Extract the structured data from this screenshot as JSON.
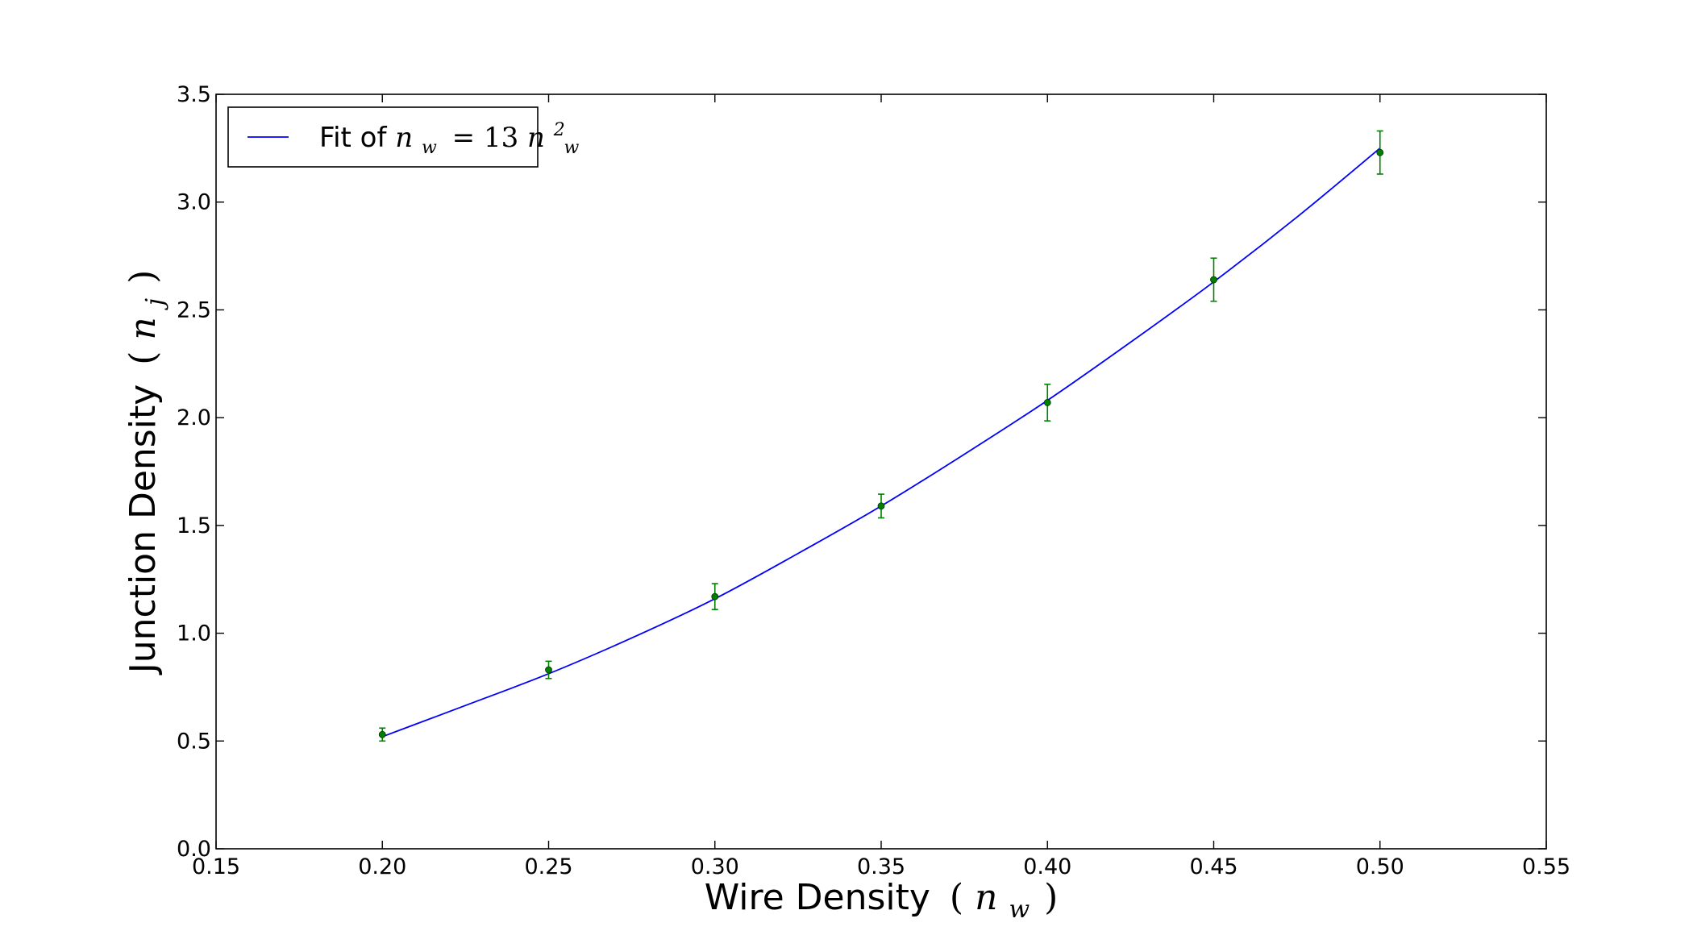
{
  "chart_data": {
    "type": "scatter",
    "title": "",
    "xlabel": {
      "text": "Wire Density",
      "math_base": "n",
      "math_sub": "w"
    },
    "ylabel": {
      "text": "Junction Density",
      "math_base": "n",
      "math_sub": "j"
    },
    "xlim": [
      0.15,
      0.55
    ],
    "ylim": [
      0.0,
      3.5
    ],
    "xticks": [
      "0.15",
      "0.20",
      "0.25",
      "0.30",
      "0.35",
      "0.40",
      "0.45",
      "0.50",
      "0.55"
    ],
    "yticks": [
      "0.0",
      "0.5",
      "1.0",
      "1.5",
      "2.0",
      "2.5",
      "3.0",
      "3.5"
    ],
    "grid": false,
    "legend_position": "top-left",
    "series": [
      {
        "name": "Fit of n_w = 13n_w^2",
        "kind": "line",
        "color": "#0000ff",
        "legend": {
          "prefix": "Fit of ",
          "lhs_base": "n",
          "lhs_sub": "w",
          "eq": "=",
          "coef": "13",
          "rhs_base": "n",
          "rhs_sub": "w",
          "rhs_sup": "2"
        },
        "x": [
          0.2,
          0.225,
          0.25,
          0.275,
          0.3,
          0.325,
          0.35,
          0.375,
          0.4,
          0.425,
          0.45,
          0.475,
          0.5
        ],
        "y": [
          0.52,
          0.665,
          0.812,
          0.978,
          1.16,
          1.37,
          1.59,
          1.83,
          2.08,
          2.35,
          2.63,
          2.93,
          3.25
        ]
      },
      {
        "kind": "errorbar",
        "color": "#008000",
        "x": [
          0.2,
          0.25,
          0.3,
          0.35,
          0.4,
          0.45,
          0.5
        ],
        "y": [
          0.53,
          0.83,
          1.17,
          1.59,
          2.07,
          2.64,
          3.23
        ],
        "yerr": [
          0.03,
          0.04,
          0.06,
          0.055,
          0.085,
          0.1,
          0.1
        ]
      }
    ]
  }
}
